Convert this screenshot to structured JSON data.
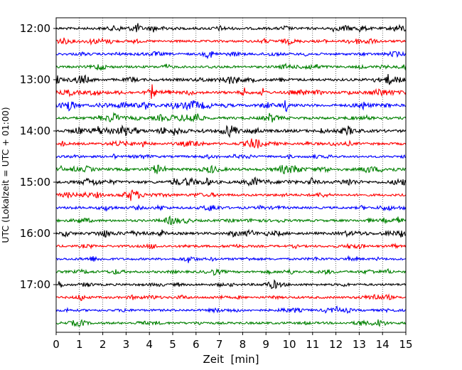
{
  "chart_data": {
    "type": "line",
    "subtype": "helicorder-seismogram",
    "title": "",
    "xlabel": "Zeit  [min]",
    "ylabel": "UTC (Lokalzeit = UTC + 01:00)",
    "xlim": [
      0,
      15
    ],
    "xticks": [
      "0",
      "1",
      "2",
      "3",
      "4",
      "5",
      "6",
      "7",
      "8",
      "9",
      "10",
      "11",
      "12",
      "13",
      "14",
      "15"
    ],
    "ytick_labels": [
      "12:00",
      "13:00",
      "14:00",
      "15:00",
      "16:00",
      "17:00"
    ],
    "grid": "vertical dotted lines at each minute",
    "legend": "none",
    "trace_colors": [
      "#000000",
      "#ff0000",
      "#0000ff",
      "#008000"
    ],
    "trace_start_times": [
      "12:00",
      "12:15",
      "12:30",
      "12:45",
      "13:00",
      "13:15",
      "13:30",
      "13:45",
      "14:00",
      "14:15",
      "14:30",
      "14:45",
      "15:00",
      "15:15",
      "15:30",
      "15:45",
      "16:00",
      "16:15",
      "16:30",
      "16:45",
      "17:00",
      "17:15",
      "17:30",
      "17:45"
    ],
    "trace_activity": [
      0.45,
      0.35,
      0.3,
      0.3,
      0.55,
      0.6,
      0.6,
      0.55,
      0.75,
      0.4,
      0.25,
      0.6,
      0.6,
      0.35,
      0.35,
      0.35,
      0.5,
      0.3,
      0.25,
      0.3,
      0.3,
      0.3,
      0.3,
      0.3
    ]
  }
}
